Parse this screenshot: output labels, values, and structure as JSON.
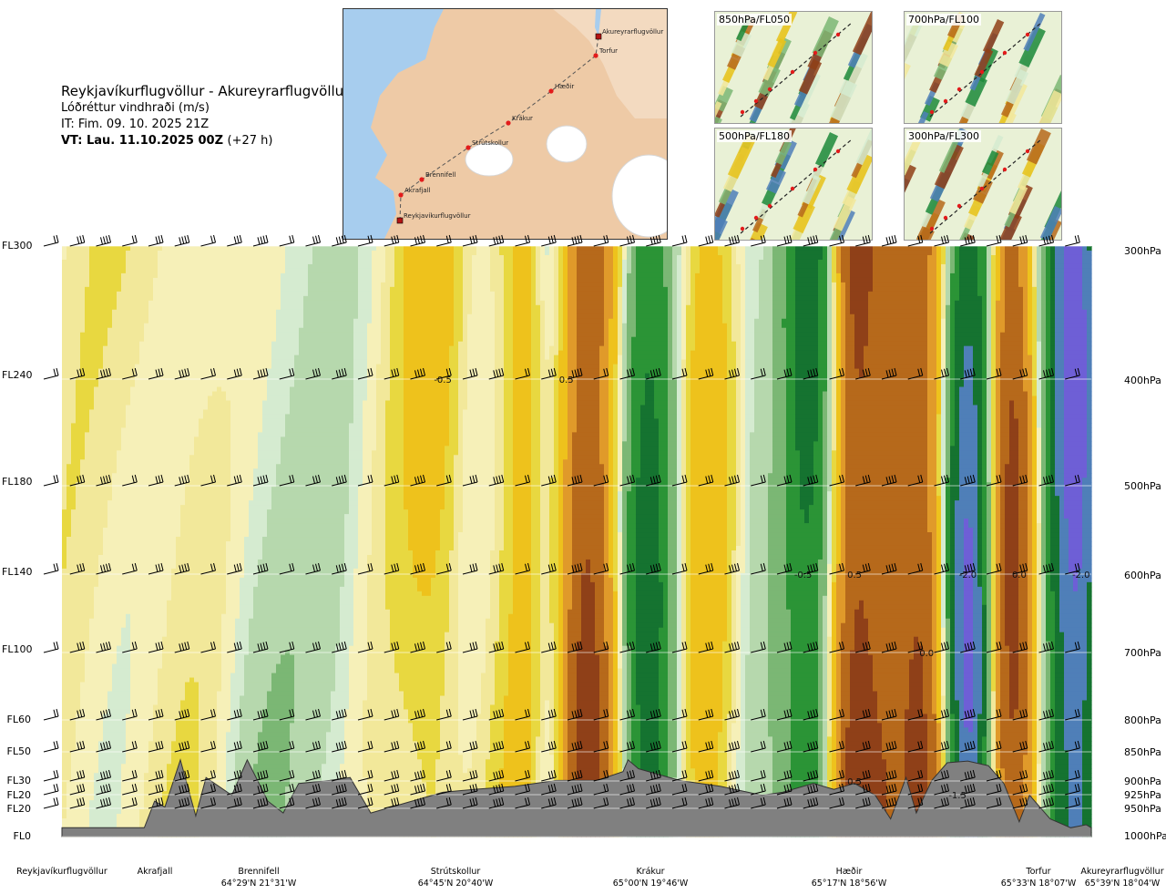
{
  "header": {
    "route": "Reykjavíkurflugvöllur - Akureyrarflugvöllur",
    "parameter": "Lóðréttur vindhraði (m/s)",
    "issue_time": "IT: Fim. 09. 10. 2025 21Z",
    "valid_time": "VT: Lau. 11.10.2025 00Z",
    "lead_time": "(+27 h)"
  },
  "route_map": {
    "points": [
      {
        "name": "Reykjavíkurflugvöllur",
        "type": "airport"
      },
      {
        "name": "Akrafjall",
        "type": "waypoint"
      },
      {
        "name": "Brennifell",
        "type": "waypoint"
      },
      {
        "name": "Strútskollur",
        "type": "waypoint"
      },
      {
        "name": "Krákur",
        "type": "waypoint"
      },
      {
        "name": "Hæðir",
        "type": "waypoint"
      },
      {
        "name": "Torfur",
        "type": "waypoint"
      },
      {
        "name": "Akureyrarflugvöllur",
        "type": "airport"
      }
    ]
  },
  "insets": [
    {
      "label": "850hPa/FL050"
    },
    {
      "label": "700hPa/FL100"
    },
    {
      "label": "500hPa/FL180"
    },
    {
      "label": "300hPa/FL300"
    }
  ],
  "levels": [
    {
      "fl": "FL300",
      "hpa": "300hPa"
    },
    {
      "fl": "FL240",
      "hpa": "400hPa"
    },
    {
      "fl": "FL180",
      "hpa": "500hPa"
    },
    {
      "fl": "FL140",
      "hpa": "600hPa"
    },
    {
      "fl": "FL100",
      "hpa": "700hPa"
    },
    {
      "fl": "FL60",
      "hpa": "800hPa"
    },
    {
      "fl": "FL50",
      "hpa": "850hPa"
    },
    {
      "fl": "FL30",
      "hpa": "900hPa"
    },
    {
      "fl": "FL20",
      "hpa": "925hPa"
    },
    {
      "fl": "FL20",
      "hpa": "950hPa"
    },
    {
      "fl": "FL0",
      "hpa": "1000hPa"
    }
  ],
  "stations": [
    {
      "name": "Reykjavíkurflugvöllur",
      "coord": ""
    },
    {
      "name": "Akrafjall",
      "coord": ""
    },
    {
      "name": "Brennifell",
      "coord": "64°29'N 21°31'W"
    },
    {
      "name": "Strútskollur",
      "coord": "64°45'N 20°40'W"
    },
    {
      "name": "Krákur",
      "coord": "65°00'N 19°46'W"
    },
    {
      "name": "Hæðir",
      "coord": "65°17'N 18°56'W"
    },
    {
      "name": "Torfur",
      "coord": "65°33'N 18°07'W"
    },
    {
      "name": "Akureyrarflugvöllur",
      "coord": "65°39'N 18°04'W"
    }
  ],
  "chart_data": {
    "type": "heatmap",
    "title": "Lóðréttur vindhraði (m/s)",
    "x_axis": "route distance (Reykjavíkurflugvöllur → Akureyrarflugvöllur)",
    "y_axis": "pressure (hPa)",
    "pressure_levels_hpa": [
      300,
      400,
      500,
      600,
      700,
      800,
      850,
      900,
      925,
      950,
      1000
    ],
    "color_scale": [
      {
        "max": -2.0,
        "color": "#6e5fd6"
      },
      {
        "max": -1.5,
        "color": "#4f7fb8"
      },
      {
        "max": -1.0,
        "color": "#157330"
      },
      {
        "max": -0.6,
        "color": "#2b9436"
      },
      {
        "max": -0.3,
        "color": "#7bb774"
      },
      {
        "max": -0.15,
        "color": "#b6d8ad"
      },
      {
        "max": -0.05,
        "color": "#d5ebd0"
      },
      {
        "max": 0.05,
        "color": "#f6f0b8"
      },
      {
        "max": 0.15,
        "color": "#f2e89a"
      },
      {
        "max": 0.3,
        "color": "#e8d840"
      },
      {
        "max": 0.6,
        "color": "#eec21c"
      },
      {
        "max": 1.0,
        "color": "#e09a2a"
      },
      {
        "max": 1.5,
        "color": "#b6691b"
      },
      {
        "max": 99,
        "color": "#8f4018"
      }
    ],
    "contour_labels": [
      {
        "text": "-0.5",
        "pos": 0.37,
        "hpa": 400
      },
      {
        "text": "0.5",
        "pos": 0.49,
        "hpa": 400
      },
      {
        "text": "-0.5",
        "pos": 0.72,
        "hpa": 600
      },
      {
        "text": "0.5",
        "pos": 0.77,
        "hpa": 600
      },
      {
        "text": "-2.0",
        "pos": 0.88,
        "hpa": 600
      },
      {
        "text": "0.0",
        "pos": 0.93,
        "hpa": 600
      },
      {
        "text": "-2.0",
        "pos": 0.99,
        "hpa": 600
      },
      {
        "text": "0.0",
        "pos": 0.84,
        "hpa": 700
      },
      {
        "text": "0.5",
        "pos": 0.77,
        "hpa": 900
      },
      {
        "text": "-1.5",
        "pos": 0.87,
        "hpa": 925
      }
    ],
    "wind_note": "wind barbs plotted at each pressure level along the route",
    "terrain": "grey filled orography profile along the route"
  }
}
